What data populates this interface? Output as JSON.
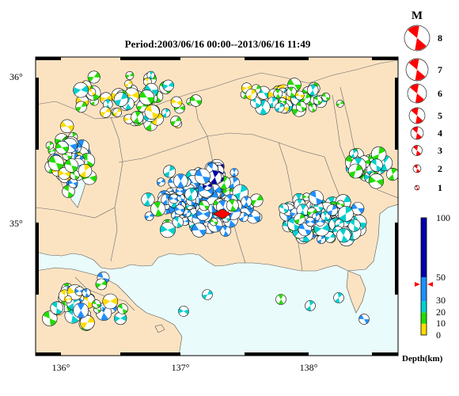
{
  "title": "Period:2003/06/16 00:00--2013/06/16 11:49",
  "map": {
    "lat_ticks": [
      "36°",
      "35°"
    ],
    "lon_ticks": [
      "136°",
      "137°",
      "138°"
    ],
    "land_color": "#fbe3c2",
    "sea_color": "#e9fbfb"
  },
  "magnitude_legend": {
    "heading": "M",
    "items": [
      "8",
      "7",
      "6",
      "5",
      "4",
      "3",
      "2",
      "1"
    ]
  },
  "depth_scale": {
    "label": "Depth(km)",
    "ticks": [
      "100",
      "50",
      "30",
      "20",
      "10",
      "0"
    ],
    "bands": [
      {
        "from": 0,
        "to": 10,
        "color": "#ffdd00"
      },
      {
        "from": 10,
        "to": 20,
        "color": "#22dd00"
      },
      {
        "from": 20,
        "to": 30,
        "color": "#00d0d0"
      },
      {
        "from": 30,
        "to": 50,
        "color": "#1e90ff"
      },
      {
        "from": 50,
        "to": 100,
        "color": "#0000aa"
      }
    ]
  },
  "main_shock": {
    "depth_km": 44,
    "color": "#ff0000"
  },
  "colors": {
    "yellow": "#ffdd00",
    "green": "#22dd00",
    "cyan": "#00d0d0",
    "blue": "#1e90ff",
    "navy": "#0000aa",
    "red": "#ff0000"
  }
}
